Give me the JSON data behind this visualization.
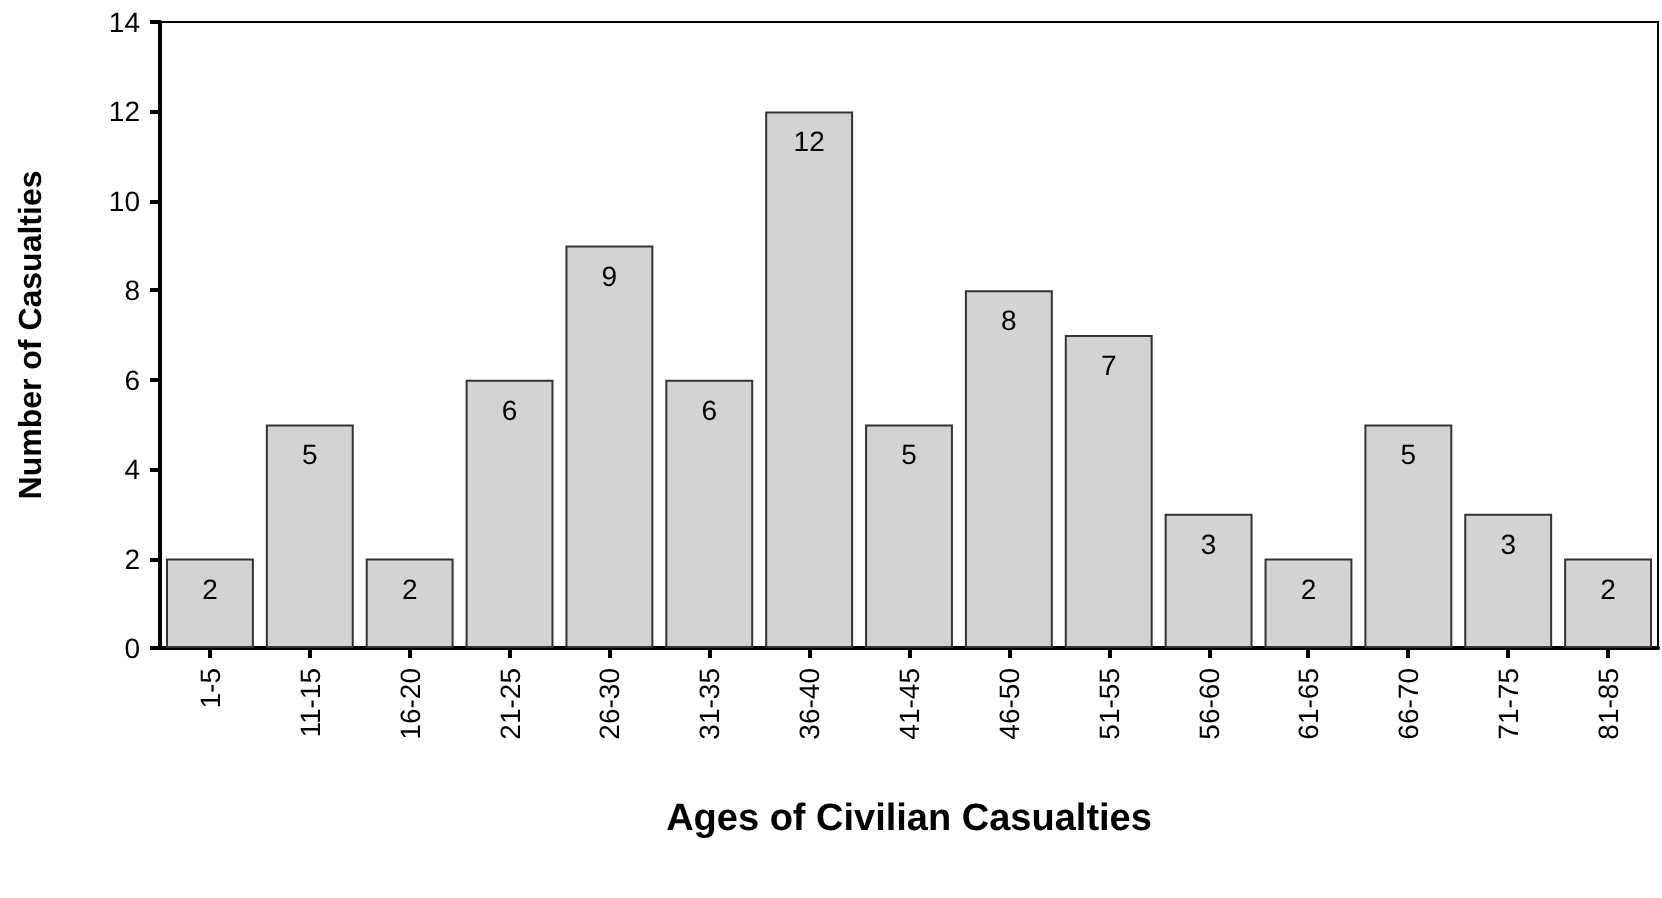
{
  "chart_data": {
    "type": "bar",
    "xlabel": "Ages of Civilian Casualties",
    "ylabel": "Number of Casualties",
    "categories": [
      "1-5",
      "11-15",
      "16-20",
      "21-25",
      "26-30",
      "31-35",
      "36-40",
      "41-45",
      "46-50",
      "51-55",
      "56-60",
      "61-65",
      "66-70",
      "71-75",
      "81-85"
    ],
    "values": [
      2,
      5,
      2,
      6,
      9,
      6,
      12,
      5,
      8,
      7,
      3,
      2,
      5,
      3,
      2
    ],
    "color": "#d3d3d3",
    "ylim": [
      0,
      14
    ],
    "yticks": [
      0,
      2,
      4,
      6,
      8,
      10,
      12,
      14
    ],
    "data_labels": true
  }
}
